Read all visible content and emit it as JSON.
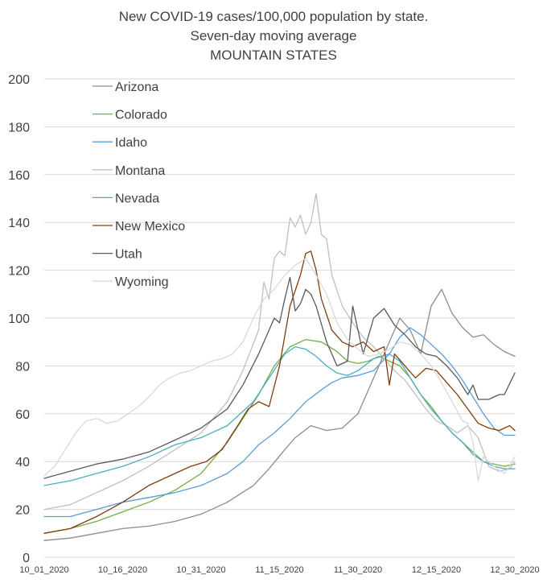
{
  "chart_data": {
    "type": "line",
    "title": "New COVID-19 cases/100,000 population by state.",
    "subtitle": "Seven-day moving average",
    "subtitle2": "MOUNTAIN STATES",
    "ylim": [
      0,
      200
    ],
    "yticks": [
      0,
      20,
      40,
      60,
      80,
      100,
      120,
      140,
      160,
      180,
      200
    ],
    "xrange": [
      0,
      90
    ],
    "xticks": [
      {
        "x": 0,
        "label": "10_01_2020"
      },
      {
        "x": 15,
        "label": "10_16_2020"
      },
      {
        "x": 30,
        "label": "10_31_2020"
      },
      {
        "x": 45,
        "label": "11_15_2020"
      },
      {
        "x": 60,
        "label": "11_30_2020"
      },
      {
        "x": 75,
        "label": "12_15_2020"
      },
      {
        "x": 90,
        "label": "12_30_2020"
      }
    ],
    "grid": true,
    "legend_position": "top-left",
    "series": [
      {
        "name": "Arizona",
        "color": "#8c8c8c",
        "points": [
          [
            0,
            7
          ],
          [
            5,
            8
          ],
          [
            10,
            10
          ],
          [
            15,
            12
          ],
          [
            20,
            13
          ],
          [
            25,
            15
          ],
          [
            30,
            18
          ],
          [
            35,
            23
          ],
          [
            40,
            30
          ],
          [
            43,
            37
          ],
          [
            46,
            45
          ],
          [
            48,
            50
          ],
          [
            51,
            55
          ],
          [
            54,
            53
          ],
          [
            57,
            54
          ],
          [
            60,
            60
          ],
          [
            63,
            75
          ],
          [
            66,
            90
          ],
          [
            68,
            100
          ],
          [
            70,
            95
          ],
          [
            72,
            85
          ],
          [
            74,
            105
          ],
          [
            76,
            112
          ],
          [
            78,
            102
          ],
          [
            80,
            96
          ],
          [
            82,
            92
          ],
          [
            84,
            93
          ],
          [
            86,
            89
          ],
          [
            88,
            86
          ],
          [
            90,
            84
          ]
        ]
      },
      {
        "name": "Colorado",
        "color": "#70ad47",
        "points": [
          [
            0,
            10
          ],
          [
            5,
            12
          ],
          [
            10,
            15
          ],
          [
            15,
            19
          ],
          [
            20,
            23
          ],
          [
            25,
            28
          ],
          [
            30,
            35
          ],
          [
            35,
            48
          ],
          [
            38,
            58
          ],
          [
            41,
            68
          ],
          [
            44,
            80
          ],
          [
            47,
            88
          ],
          [
            50,
            91
          ],
          [
            53,
            90
          ],
          [
            56,
            86
          ],
          [
            58,
            82
          ],
          [
            60,
            81
          ],
          [
            62,
            82
          ],
          [
            64,
            84
          ],
          [
            66,
            82
          ],
          [
            68,
            80
          ],
          [
            70,
            75
          ],
          [
            72,
            68
          ],
          [
            74,
            63
          ],
          [
            76,
            57
          ],
          [
            78,
            52
          ],
          [
            80,
            48
          ],
          [
            82,
            44
          ],
          [
            84,
            40
          ],
          [
            86,
            39
          ],
          [
            88,
            38
          ],
          [
            90,
            39
          ]
        ]
      },
      {
        "name": "Idaho",
        "color": "#5b9bd5",
        "points": [
          [
            0,
            17
          ],
          [
            5,
            17
          ],
          [
            10,
            20
          ],
          [
            15,
            23
          ],
          [
            20,
            25
          ],
          [
            25,
            27
          ],
          [
            30,
            30
          ],
          [
            35,
            35
          ],
          [
            38,
            40
          ],
          [
            41,
            47
          ],
          [
            44,
            52
          ],
          [
            47,
            58
          ],
          [
            50,
            65
          ],
          [
            53,
            70
          ],
          [
            55,
            73
          ],
          [
            57,
            75
          ],
          [
            60,
            76
          ],
          [
            63,
            78
          ],
          [
            66,
            85
          ],
          [
            68,
            92
          ],
          [
            70,
            96
          ],
          [
            72,
            93
          ],
          [
            74,
            89
          ],
          [
            76,
            85
          ],
          [
            78,
            80
          ],
          [
            80,
            74
          ],
          [
            82,
            67
          ],
          [
            84,
            60
          ],
          [
            86,
            54
          ],
          [
            88,
            51
          ],
          [
            90,
            51
          ]
        ]
      },
      {
        "name": "Montana",
        "color": "#bfbfbf",
        "points": [
          [
            0,
            20
          ],
          [
            5,
            22
          ],
          [
            10,
            27
          ],
          [
            15,
            32
          ],
          [
            20,
            38
          ],
          [
            25,
            45
          ],
          [
            30,
            52
          ],
          [
            35,
            65
          ],
          [
            38,
            78
          ],
          [
            41,
            95
          ],
          [
            42,
            115
          ],
          [
            43,
            108
          ],
          [
            44,
            125
          ],
          [
            45,
            128
          ],
          [
            46,
            126
          ],
          [
            47,
            142
          ],
          [
            48,
            138
          ],
          [
            49,
            143
          ],
          [
            50,
            135
          ],
          [
            51,
            140
          ],
          [
            52,
            152
          ],
          [
            53,
            135
          ],
          [
            54,
            133
          ],
          [
            55,
            118
          ],
          [
            57,
            105
          ],
          [
            59,
            98
          ],
          [
            61,
            92
          ],
          [
            63,
            88
          ],
          [
            65,
            83
          ],
          [
            67,
            78
          ],
          [
            69,
            74
          ],
          [
            71,
            68
          ],
          [
            73,
            62
          ],
          [
            75,
            57
          ],
          [
            77,
            55
          ],
          [
            79,
            52
          ],
          [
            81,
            55
          ],
          [
            83,
            50
          ],
          [
            85,
            38
          ],
          [
            87,
            36
          ],
          [
            89,
            37
          ],
          [
            90,
            40
          ]
        ]
      },
      {
        "name": "Nevada",
        "color": "#4bacc6",
        "points": [
          [
            0,
            30
          ],
          [
            5,
            32
          ],
          [
            10,
            35
          ],
          [
            15,
            38
          ],
          [
            20,
            42
          ],
          [
            25,
            47
          ],
          [
            30,
            50
          ],
          [
            35,
            55
          ],
          [
            40,
            65
          ],
          [
            43,
            75
          ],
          [
            46,
            85
          ],
          [
            48,
            88
          ],
          [
            50,
            87
          ],
          [
            52,
            84
          ],
          [
            54,
            80
          ],
          [
            56,
            77
          ],
          [
            58,
            76
          ],
          [
            60,
            78
          ],
          [
            63,
            83
          ],
          [
            66,
            85
          ],
          [
            68,
            82
          ],
          [
            70,
            75
          ],
          [
            72,
            68
          ],
          [
            74,
            62
          ],
          [
            76,
            57
          ],
          [
            78,
            52
          ],
          [
            80,
            48
          ],
          [
            82,
            43
          ],
          [
            84,
            40
          ],
          [
            86,
            38
          ],
          [
            88,
            37
          ],
          [
            90,
            37
          ]
        ]
      },
      {
        "name": "New Mexico",
        "color": "#843c0c",
        "points": [
          [
            0,
            10
          ],
          [
            5,
            12
          ],
          [
            10,
            17
          ],
          [
            15,
            23
          ],
          [
            20,
            30
          ],
          [
            25,
            35
          ],
          [
            28,
            38
          ],
          [
            31,
            40
          ],
          [
            34,
            45
          ],
          [
            37,
            55
          ],
          [
            39,
            62
          ],
          [
            41,
            65
          ],
          [
            43,
            63
          ],
          [
            45,
            80
          ],
          [
            47,
            105
          ],
          [
            49,
            118
          ],
          [
            50,
            127
          ],
          [
            51,
            128
          ],
          [
            52,
            120
          ],
          [
            53,
            108
          ],
          [
            55,
            95
          ],
          [
            57,
            90
          ],
          [
            59,
            88
          ],
          [
            61,
            90
          ],
          [
            63,
            86
          ],
          [
            65,
            88
          ],
          [
            66,
            72
          ],
          [
            67,
            85
          ],
          [
            69,
            80
          ],
          [
            71,
            75
          ],
          [
            73,
            79
          ],
          [
            75,
            78
          ],
          [
            77,
            73
          ],
          [
            79,
            68
          ],
          [
            81,
            62
          ],
          [
            83,
            56
          ],
          [
            85,
            54
          ],
          [
            87,
            53
          ],
          [
            89,
            55
          ],
          [
            90,
            53
          ]
        ]
      },
      {
        "name": "Utah",
        "color": "#595959",
        "points": [
          [
            0,
            33
          ],
          [
            5,
            36
          ],
          [
            10,
            39
          ],
          [
            15,
            41
          ],
          [
            20,
            44
          ],
          [
            25,
            49
          ],
          [
            30,
            54
          ],
          [
            35,
            62
          ],
          [
            38,
            72
          ],
          [
            41,
            85
          ],
          [
            43,
            95
          ],
          [
            44,
            100
          ],
          [
            45,
            98
          ],
          [
            46,
            108
          ],
          [
            47,
            117
          ],
          [
            48,
            103
          ],
          [
            49,
            106
          ],
          [
            50,
            112
          ],
          [
            51,
            110
          ],
          [
            52,
            105
          ],
          [
            54,
            90
          ],
          [
            56,
            80
          ],
          [
            58,
            82
          ],
          [
            59,
            105
          ],
          [
            60,
            95
          ],
          [
            61,
            85
          ],
          [
            63,
            100
          ],
          [
            65,
            104
          ],
          [
            67,
            97
          ],
          [
            69,
            93
          ],
          [
            71,
            88
          ],
          [
            73,
            85
          ],
          [
            75,
            84
          ],
          [
            77,
            80
          ],
          [
            79,
            75
          ],
          [
            81,
            68
          ],
          [
            82,
            72
          ],
          [
            83,
            66
          ],
          [
            85,
            66
          ],
          [
            87,
            68
          ],
          [
            88,
            68
          ],
          [
            90,
            77
          ]
        ]
      },
      {
        "name": "Wyoming",
        "color": "#d9d9d9",
        "points": [
          [
            0,
            34
          ],
          [
            2,
            38
          ],
          [
            4,
            45
          ],
          [
            6,
            52
          ],
          [
            8,
            57
          ],
          [
            10,
            58
          ],
          [
            12,
            56
          ],
          [
            14,
            57
          ],
          [
            16,
            60
          ],
          [
            18,
            63
          ],
          [
            20,
            67
          ],
          [
            22,
            72
          ],
          [
            24,
            75
          ],
          [
            26,
            77
          ],
          [
            28,
            78
          ],
          [
            30,
            80
          ],
          [
            32,
            82
          ],
          [
            34,
            83
          ],
          [
            36,
            85
          ],
          [
            38,
            90
          ],
          [
            40,
            100
          ],
          [
            42,
            108
          ],
          [
            44,
            112
          ],
          [
            46,
            118
          ],
          [
            48,
            122
          ],
          [
            50,
            125
          ],
          [
            52,
            118
          ],
          [
            54,
            110
          ],
          [
            56,
            98
          ],
          [
            58,
            91
          ],
          [
            60,
            87
          ],
          [
            62,
            84
          ],
          [
            64,
            85
          ],
          [
            66,
            87
          ],
          [
            68,
            90
          ],
          [
            70,
            89
          ],
          [
            72,
            85
          ],
          [
            74,
            80
          ],
          [
            76,
            73
          ],
          [
            78,
            65
          ],
          [
            80,
            57
          ],
          [
            81,
            56
          ],
          [
            82,
            48
          ],
          [
            83,
            32
          ],
          [
            84,
            42
          ],
          [
            86,
            38
          ],
          [
            88,
            35
          ],
          [
            89,
            38
          ],
          [
            90,
            42
          ]
        ]
      }
    ]
  }
}
